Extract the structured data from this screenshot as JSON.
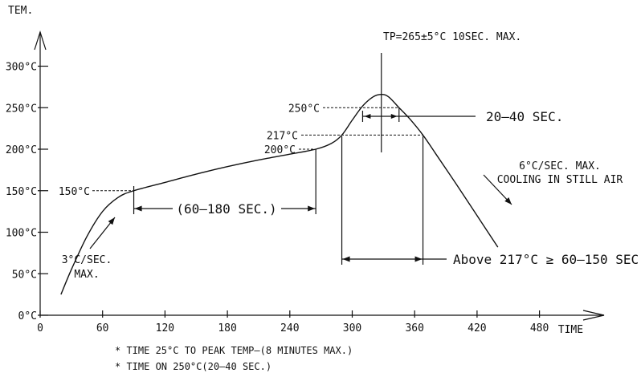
{
  "chart_data": {
    "type": "line",
    "title": "",
    "xlabel": "TIME",
    "ylabel": "TEM.",
    "xlim": [
      0,
      520
    ],
    "ylim": [
      0,
      340
    ],
    "x_ticks": [
      0,
      60,
      120,
      180,
      240,
      300,
      360,
      420,
      480
    ],
    "x_tick_labels": [
      "0",
      "60",
      "120",
      "180",
      "240",
      "300",
      "360",
      "420",
      "480"
    ],
    "y_ticks": [
      0,
      50,
      100,
      150,
      200,
      250,
      300
    ],
    "y_tick_labels": [
      "0°C",
      "50°C",
      "100°C",
      "150°C",
      "200°C",
      "250°C",
      "300°C"
    ],
    "grid": false,
    "legend": "none",
    "series": [
      {
        "x": [
          20,
          30,
          45,
          60,
          75,
          90,
          120,
          150,
          180,
          210,
          240,
          265,
          280,
          290,
          300,
          310,
          320,
          328,
          335,
          345,
          355,
          368,
          380,
          400,
          420,
          440
        ],
        "y": [
          25,
          55,
          95,
          125,
          142,
          150,
          160,
          170,
          179,
          187,
          194,
          200,
          207,
          217,
          235,
          252,
          263,
          266,
          263,
          250,
          237,
          217,
          195,
          158,
          120,
          82
        ]
      }
    ],
    "annotations": {
      "peak": "TP=265±5°C 10SEC. MAX.",
      "level_250": "250°C",
      "level_217": "217°C",
      "level_200": "200°C",
      "level_150": "150°C",
      "time_at_250": "20–40 SEC.",
      "preheat": "(60–180 SEC.)",
      "above_217": "Above 217°C ≥ 60–150 SEC.",
      "ramp_up_1": "3°C/SEC.",
      "ramp_up_2": "MAX.",
      "cooling_1": "6°C/SEC. MAX.",
      "cooling_2": "COOLING IN STILL AIR"
    },
    "notes": [
      "* TIME 25°C TO PEAK TEMP–(8 MINUTES MAX.)",
      "* TIME ON 250°C(20–40 SEC.)"
    ]
  }
}
